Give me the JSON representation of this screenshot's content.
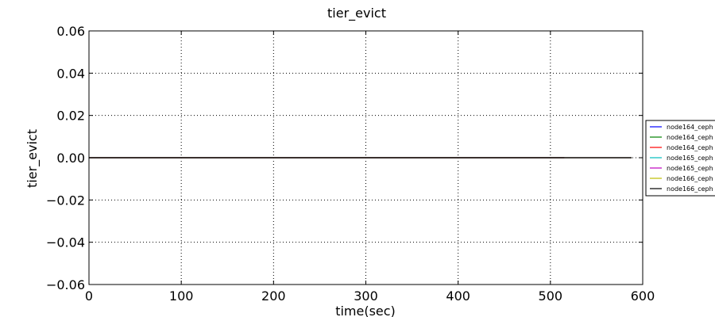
{
  "chart_data": {
    "type": "line",
    "title": "tier_evict",
    "xlabel": "time(sec)",
    "ylabel": "tier_evict",
    "xlim": [
      0,
      600
    ],
    "ylim": [
      -0.06,
      0.06
    ],
    "x_ticks": [
      0,
      100,
      200,
      300,
      400,
      500,
      600
    ],
    "x_tick_labels": [
      "0",
      "100",
      "200",
      "300",
      "400",
      "500",
      "600"
    ],
    "y_ticks": [
      -0.06,
      -0.04,
      -0.02,
      0.0,
      0.02,
      0.04,
      0.06
    ],
    "y_tick_labels": [
      "−0.06",
      "−0.04",
      "−0.02",
      "0.00",
      "0.02",
      "0.04",
      "0.06"
    ],
    "grid": true,
    "legend_position": "right, outside plot area",
    "series": [
      {
        "name": "node164_ceph",
        "color": "#0000ff",
        "x": [
          0,
          515
        ],
        "y": [
          0,
          0
        ]
      },
      {
        "name": "node164_ceph",
        "color": "#008000",
        "x": [
          0,
          515
        ],
        "y": [
          0,
          0
        ]
      },
      {
        "name": "node164_ceph",
        "color": "#ff0000",
        "x": [
          0,
          515
        ],
        "y": [
          0,
          0
        ]
      },
      {
        "name": "node165_ceph",
        "color": "#00bfbf",
        "x": [
          0,
          588
        ],
        "y": [
          0,
          0
        ]
      },
      {
        "name": "node165_ceph",
        "color": "#bf00bf",
        "x": [
          0,
          588
        ],
        "y": [
          0,
          0
        ]
      },
      {
        "name": "node166_ceph",
        "color": "#bfbf00",
        "x": [
          0,
          588
        ],
        "y": [
          0,
          0
        ]
      },
      {
        "name": "node166_ceph",
        "color": "#000000",
        "x": [
          0,
          588
        ],
        "y": [
          0,
          0
        ]
      }
    ]
  }
}
